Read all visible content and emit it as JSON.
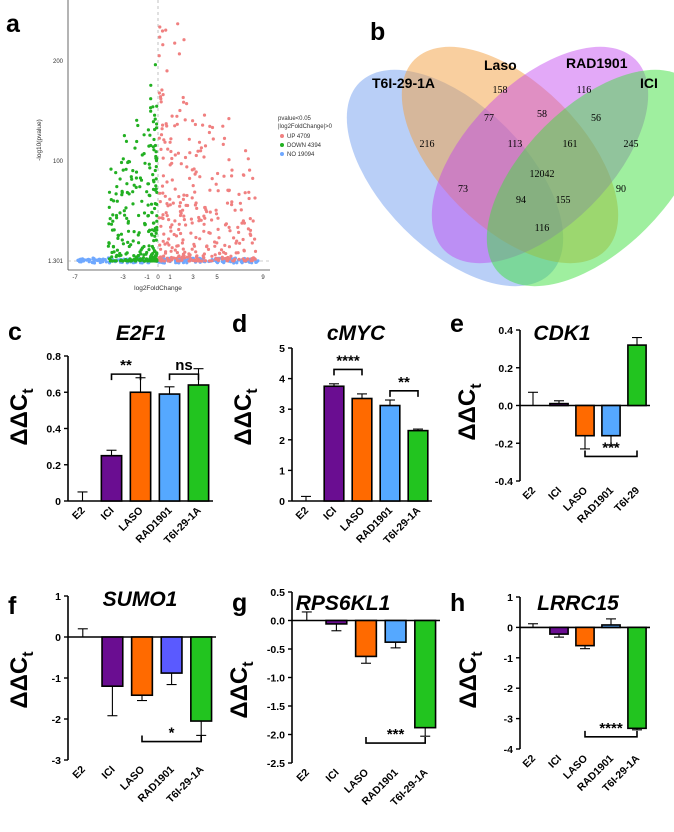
{
  "panel_labels": [
    "a",
    "b",
    "c",
    "d",
    "e",
    "f",
    "g",
    "h"
  ],
  "colors": {
    "E2": "#bdbdbd",
    "ICI": "#6a0d91",
    "LASO": "#ff6a00",
    "RAD1901": "#55a8ff",
    "T6I-29-1A": "#22c41f",
    "SUMO1_RAD1901": "#5a5aff",
    "volcano_up": "#f08080",
    "volcano_down": "#22b022",
    "volcano_no": "#6fa8ff"
  },
  "volcano": {
    "xlabel": "log2FoldChange",
    "ylabel": "-log10(pvalue)",
    "x_ticks": [
      "-7",
      "-3",
      "-1",
      "0",
      "1",
      "3",
      "5",
      "9"
    ],
    "y_ticks": [
      "1.301",
      "100",
      "200"
    ],
    "legend_title_1": "pvalue<0.05",
    "legend_title_2": "|log2FoldChange|>0",
    "legend_up": "UP 4709",
    "legend_down": "DOWN 4394",
    "legend_no": "NO 19094"
  },
  "venn": {
    "sets": [
      "T6I-29-1A",
      "Laso",
      "RAD1901",
      "ICI"
    ],
    "counts": {
      "t6_only": "216",
      "laso_only": "158",
      "rad_only": "116",
      "ici_only": "245",
      "t6_laso": "77",
      "laso_rad": "58",
      "rad_ici": "56",
      "t6_laso_rad": "113",
      "laso_rad_ici": "161",
      "all": "12042",
      "t6_rad": "73",
      "laso_ici": "90",
      "t6_rad_ici": "94",
      "t6_laso_ici": "155",
      "t6_ici": "116"
    }
  },
  "chart_data": [
    {
      "panel": "c",
      "type": "bar",
      "title": "E2F1",
      "ylabel_main": "ΔΔC",
      "ylabel_sub": "t",
      "categories": [
        "E2",
        "ICI",
        "LASO",
        "RAD1901",
        "T6I-29-1A"
      ],
      "values": [
        0.0,
        0.25,
        0.6,
        0.59,
        0.64
      ],
      "errors": [
        0.05,
        0.03,
        0.08,
        0.04,
        0.09
      ],
      "ylim": [
        0,
        0.8
      ],
      "yticks": [
        "0",
        "0.2",
        "0.4",
        "0.6",
        "0.8"
      ],
      "significance": [
        {
          "from": 1,
          "to": 2,
          "label": "**",
          "y": 0.7
        },
        {
          "from": 3,
          "to": 4,
          "label": "ns",
          "y": 0.7
        }
      ]
    },
    {
      "panel": "d",
      "type": "bar",
      "title": "cMYC",
      "ylabel_main": "ΔΔC",
      "ylabel_sub": "t",
      "categories": [
        "E2",
        "ICI",
        "LASO",
        "RAD1901",
        "T6I-29-1A"
      ],
      "values": [
        0.0,
        3.75,
        3.35,
        3.12,
        2.3
      ],
      "errors": [
        0.15,
        0.08,
        0.15,
        0.18,
        0.05
      ],
      "ylim": [
        0,
        5
      ],
      "yticks": [
        "0",
        "1",
        "2",
        "3",
        "4",
        "5"
      ],
      "significance": [
        {
          "from": 1,
          "to": 2,
          "label": "****",
          "y": 4.3
        },
        {
          "from": 3,
          "to": 4,
          "label": "**",
          "y": 3.6
        }
      ]
    },
    {
      "panel": "e",
      "type": "bar",
      "title": "CDK1",
      "ylabel_main": "ΔΔC",
      "ylabel_sub": "t",
      "categories": [
        "E2",
        "ICI",
        "LASO",
        "RAD1901",
        "T6I-29"
      ],
      "values": [
        0.0,
        0.01,
        -0.16,
        -0.16,
        0.32
      ],
      "errors": [
        0.07,
        0.015,
        0.07,
        0.05,
        0.04
      ],
      "ylim": [
        -0.4,
        0.4
      ],
      "yticks": [
        "-0.4",
        "-0.2",
        "0.0",
        "0.2",
        "0.4"
      ],
      "significance": [
        {
          "from": 2,
          "to": 4,
          "label": "***",
          "y": -0.27,
          "below": true
        }
      ]
    },
    {
      "panel": "f",
      "type": "bar",
      "title": "SUMO1",
      "ylabel_main": "ΔΔC",
      "ylabel_sub": "t",
      "categories": [
        "E2",
        "ICI",
        "LASO",
        "RAD1901",
        "T6I-29-1A"
      ],
      "values": [
        0.0,
        -1.2,
        -1.42,
        -0.88,
        -2.05
      ],
      "errors": [
        0.2,
        0.72,
        0.13,
        0.28,
        0.35
      ],
      "ylim": [
        -3,
        1
      ],
      "yticks": [
        "-3",
        "-2",
        "-1",
        "0",
        "1"
      ],
      "significance": [
        {
          "from": 2,
          "to": 4,
          "label": "*",
          "y": -2.55,
          "below": true
        }
      ]
    },
    {
      "panel": "g",
      "type": "bar",
      "title": "RPS6KL1",
      "ylabel_main": "ΔΔC",
      "ylabel_sub": "t",
      "categories": [
        "E2",
        "ICI",
        "LASO",
        "RAD1901",
        "T6I-29-1A"
      ],
      "values": [
        0.0,
        -0.06,
        -0.63,
        -0.38,
        -1.88
      ],
      "errors": [
        0.15,
        0.12,
        0.12,
        0.1,
        0.15
      ],
      "ylim": [
        -2.5,
        0.5
      ],
      "yticks": [
        "-2.5",
        "-2.0",
        "-1.5",
        "-1.0",
        "-0.5",
        "0.0",
        "0.5"
      ],
      "significance": [
        {
          "from": 2,
          "to": 4,
          "label": "***",
          "y": -2.15,
          "below": true
        }
      ]
    },
    {
      "panel": "h",
      "type": "bar",
      "title": "LRRC15",
      "ylabel_main": "ΔΔC",
      "ylabel_sub": "t",
      "categories": [
        "E2",
        "ICI",
        "LASO",
        "RAD1901",
        "T6I-29-1A"
      ],
      "values": [
        0.0,
        -0.22,
        -0.6,
        0.08,
        -3.32
      ],
      "errors": [
        0.12,
        0.1,
        0.1,
        0.2,
        0.05
      ],
      "ylim": [
        -4,
        1
      ],
      "yticks": [
        "-4",
        "-3",
        "-2",
        "-1",
        "0",
        "1"
      ],
      "significance": [
        {
          "from": 2,
          "to": 4,
          "label": "****",
          "y": -3.6,
          "below": true
        }
      ]
    }
  ]
}
